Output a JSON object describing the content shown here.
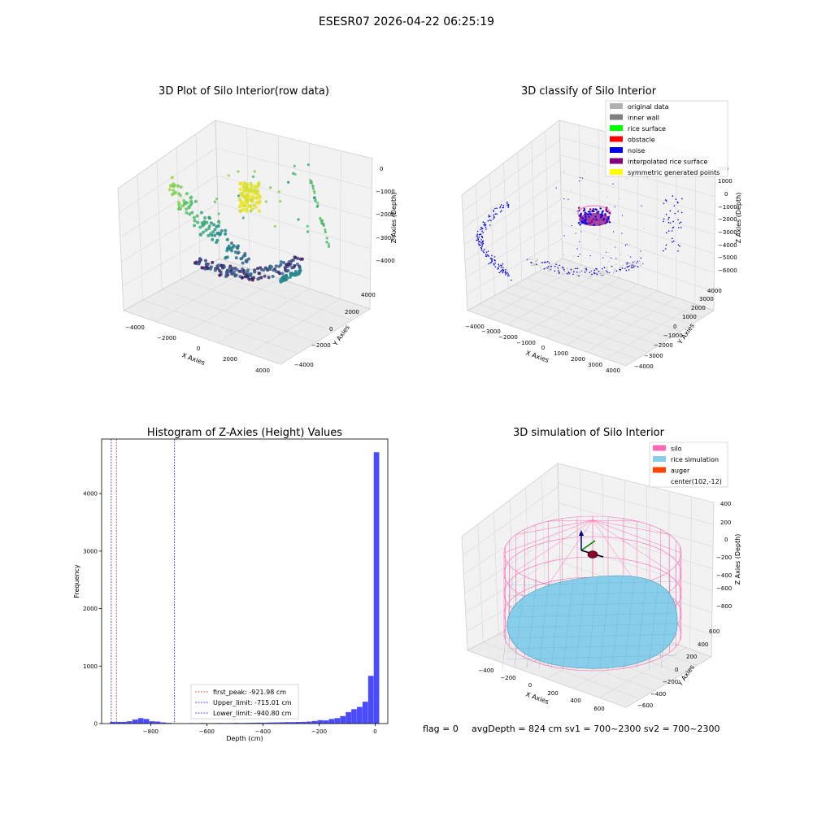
{
  "figure": {
    "suptitle": "ESESR07 2026-04-22 06:25:19",
    "flag_text": "flag = 0",
    "status_text": "avgDepth = 824 cm  sv1 = 700~2300  sv2 = 700~2300"
  },
  "colors": {
    "hist_bar": "#4a4aff",
    "peak_line": "#cc3333",
    "limit_line": "#2222dd",
    "silo": "#ff69b4",
    "rice": "#87ceeb",
    "auger": "#ff4500",
    "noise": "#0000ee",
    "original": "#b0b0b0",
    "inner_wall": "#808080",
    "rice_surface": "#00ff00",
    "obstacle": "#ff0000",
    "interp": "#800080",
    "symmetric": "#ffff00"
  },
  "chart_data": [
    {
      "type": "scatter",
      "title": "3D Plot of Silo Interior(row data)",
      "xlabel": "X Axies",
      "ylabel": "Y Axies",
      "zlabel": "Z Axies (Depth)",
      "x_ticks": [
        "−4000",
        "−2000",
        "0",
        "2000",
        "4000"
      ],
      "y_ticks": [
        "−4000",
        "−2000",
        "0",
        "2000",
        "4000"
      ],
      "z_ticks": [
        "0",
        "−1000",
        "−2000",
        "−3000",
        "−4000"
      ],
      "xlim": [
        -4500,
        4500
      ],
      "ylim": [
        -4500,
        4500
      ],
      "zlim": [
        -4500,
        0
      ],
      "grid": true
    },
    {
      "type": "scatter",
      "title": "3D classify of Silo Interior",
      "xlabel": "X Axies",
      "ylabel": "Y Axies",
      "zlabel": "Z Axies (Depth)",
      "x_ticks": [
        "−4000",
        "−3000",
        "−2000",
        "−1000",
        "0",
        "1000",
        "2000",
        "3000",
        "4000"
      ],
      "y_ticks": [
        "−4000",
        "−3000",
        "−2000",
        "−1000",
        "0",
        "1000",
        "2000",
        "3000",
        "4000"
      ],
      "z_ticks": [
        "1000",
        "0",
        "−1000",
        "−2000",
        "−3000",
        "−4000",
        "−5000",
        "−6000"
      ],
      "z_tick_partial": "000",
      "legend": [
        "original data",
        "inner wall",
        "rice surface",
        "obstacle",
        "noise",
        "interpolated rice surface",
        "symmetric generated points"
      ],
      "legend_position": "top-right",
      "grid": true
    },
    {
      "type": "bar",
      "title": "Histogram of Z-Axies (Height) Values",
      "xlabel": "Depth (cm)",
      "ylabel": "Frequency",
      "xlim": [
        -975,
        45
      ],
      "ylim": [
        0,
        4950
      ],
      "x_ticks": [
        -800,
        -600,
        -400,
        -200,
        0
      ],
      "x_tick_labels": [
        "−800",
        "−600",
        "−400",
        "−200",
        "0"
      ],
      "y_ticks": [
        0,
        1000,
        2000,
        3000,
        4000
      ],
      "bin_width": 20,
      "bins": [
        {
          "x": -935,
          "v": 30
        },
        {
          "x": -915,
          "v": 30
        },
        {
          "x": -895,
          "v": 30
        },
        {
          "x": -875,
          "v": 40
        },
        {
          "x": -855,
          "v": 70
        },
        {
          "x": -835,
          "v": 95
        },
        {
          "x": -815,
          "v": 80
        },
        {
          "x": -795,
          "v": 40
        },
        {
          "x": -775,
          "v": 35
        },
        {
          "x": -755,
          "v": 20
        },
        {
          "x": -735,
          "v": 12
        },
        {
          "x": -715,
          "v": 6
        },
        {
          "x": -695,
          "v": 4
        },
        {
          "x": -675,
          "v": 3
        },
        {
          "x": -655,
          "v": 8
        },
        {
          "x": -635,
          "v": 4
        },
        {
          "x": -615,
          "v": 10
        },
        {
          "x": -595,
          "v": 6
        },
        {
          "x": -575,
          "v": 8
        },
        {
          "x": -555,
          "v": 10
        },
        {
          "x": -535,
          "v": 8
        },
        {
          "x": -515,
          "v": 10
        },
        {
          "x": -495,
          "v": 12
        },
        {
          "x": -475,
          "v": 10
        },
        {
          "x": -455,
          "v": 12
        },
        {
          "x": -435,
          "v": 14
        },
        {
          "x": -415,
          "v": 16
        },
        {
          "x": -395,
          "v": 15
        },
        {
          "x": -375,
          "v": 18
        },
        {
          "x": -355,
          "v": 20
        },
        {
          "x": -335,
          "v": 22
        },
        {
          "x": -315,
          "v": 25
        },
        {
          "x": -295,
          "v": 25
        },
        {
          "x": -275,
          "v": 28
        },
        {
          "x": -255,
          "v": 30
        },
        {
          "x": -235,
          "v": 35
        },
        {
          "x": -215,
          "v": 45
        },
        {
          "x": -195,
          "v": 60
        },
        {
          "x": -175,
          "v": 55
        },
        {
          "x": -155,
          "v": 80
        },
        {
          "x": -135,
          "v": 95
        },
        {
          "x": -115,
          "v": 130
        },
        {
          "x": -95,
          "v": 200
        },
        {
          "x": -75,
          "v": 250
        },
        {
          "x": -55,
          "v": 290
        },
        {
          "x": -35,
          "v": 380
        },
        {
          "x": -15,
          "v": 830
        },
        {
          "x": 5,
          "v": 4720
        }
      ],
      "lines": [
        {
          "label": "first_peak: -921.98 cm",
          "x": -921.98,
          "style": "peak"
        },
        {
          "label": "Upper_limit: -715.01 cm",
          "x": -715.01,
          "style": "limit"
        },
        {
          "label": "Lower_limit: -940.80 cm",
          "x": -940.8,
          "style": "limit"
        }
      ],
      "legend_position": "lower-center"
    },
    {
      "type": "scatter",
      "title": "3D simulation of Silo Interior",
      "xlabel": "X Axies",
      "ylabel": "Y Axies",
      "zlabel": "Z Axies (Depth)",
      "x_ticks": [
        "−400",
        "−200",
        "0",
        "200",
        "400",
        "600"
      ],
      "y_ticks": [
        "600",
        "400",
        "200",
        "0",
        "−200",
        "−400",
        "−600"
      ],
      "z_ticks": [
        "400",
        "200",
        "0",
        "−200",
        "−400",
        "−600",
        "−800"
      ],
      "legend": [
        "silo",
        "rice simulation",
        "auger",
        "center(102,-12)"
      ],
      "legend_position": "top-right",
      "grid": true
    }
  ]
}
